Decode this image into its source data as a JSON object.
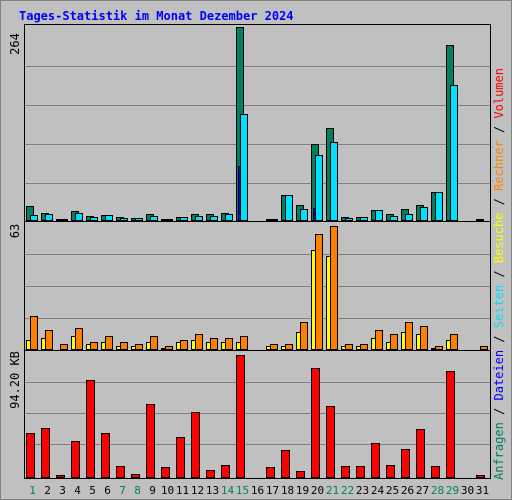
{
  "title": "Tages-Statistik im Monat Dezember 2024",
  "colors": {
    "background": "#c0c0c0",
    "title": "#0000ff",
    "grid": "#808080",
    "anfragen": "#008060",
    "dateien": "#0000ff",
    "seiten": "#00e0ff",
    "besuche": "#ffff00",
    "rechner": "#ff8000",
    "volumen": "#ff0000",
    "weekend": "#00805c",
    "weekday": "#000000"
  },
  "chart_data": [
    {
      "type": "bar",
      "panel": "top",
      "categories": [
        "1",
        "2",
        "3",
        "4",
        "5",
        "6",
        "7",
        "8",
        "9",
        "10",
        "11",
        "12",
        "13",
        "14",
        "15",
        "16",
        "17",
        "18",
        "19",
        "20",
        "21",
        "22",
        "23",
        "24",
        "25",
        "26",
        "27",
        "28",
        "29",
        "30",
        "31"
      ],
      "y_axis_max_label": "264",
      "ylim": [
        0,
        264
      ],
      "series": [
        {
          "name": "Anfragen",
          "values": [
            21,
            11,
            3,
            13,
            7,
            8,
            5,
            4,
            9,
            3,
            6,
            10,
            9,
            11,
            264,
            0,
            3,
            36,
            22,
            105,
            126,
            5,
            6,
            15,
            10,
            16,
            22,
            39,
            240,
            0,
            1
          ]
        },
        {
          "name": "Dateien",
          "values": [
            0,
            0,
            0,
            0,
            0,
            0,
            0,
            0,
            0,
            0,
            0,
            0,
            0,
            0,
            75,
            0,
            0,
            0,
            0,
            18,
            0,
            0,
            0,
            0,
            0,
            0,
            0,
            0,
            0,
            0,
            0
          ]
        },
        {
          "name": "Seiten",
          "values": [
            8,
            9,
            2,
            11,
            5,
            8,
            4,
            4,
            7,
            3,
            5,
            7,
            7,
            9,
            145,
            0,
            3,
            35,
            16,
            90,
            108,
            4,
            6,
            15,
            7,
            9,
            19,
            39,
            185,
            0,
            0
          ]
        }
      ]
    },
    {
      "type": "bar",
      "panel": "middle",
      "categories": [
        "1",
        "2",
        "3",
        "4",
        "5",
        "6",
        "7",
        "8",
        "9",
        "10",
        "11",
        "12",
        "13",
        "14",
        "15",
        "16",
        "17",
        "18",
        "19",
        "20",
        "21",
        "22",
        "23",
        "24",
        "25",
        "26",
        "27",
        "28",
        "29",
        "30",
        "31"
      ],
      "y_axis_max_label": "63",
      "ylim": [
        0,
        63
      ],
      "series": [
        {
          "name": "Besuche",
          "values": [
            5,
            6,
            0,
            7,
            3,
            4,
            2,
            2,
            4,
            1,
            4,
            5,
            4,
            4,
            4,
            0,
            2,
            2,
            9,
            50,
            47,
            2,
            2,
            6,
            4,
            9,
            8,
            1,
            5,
            0,
            0
          ]
        },
        {
          "name": "Rechner",
          "values": [
            17,
            10,
            3,
            11,
            4,
            7,
            4,
            3,
            7,
            2,
            5,
            8,
            6,
            6,
            7,
            0,
            3,
            3,
            14,
            58,
            62,
            3,
            3,
            10,
            8,
            14,
            12,
            2,
            8,
            0,
            2
          ]
        }
      ]
    },
    {
      "type": "bar",
      "panel": "bottom",
      "categories": [
        "1",
        "2",
        "3",
        "4",
        "5",
        "6",
        "7",
        "8",
        "9",
        "10",
        "11",
        "12",
        "13",
        "14",
        "15",
        "16",
        "17",
        "18",
        "19",
        "20",
        "21",
        "22",
        "23",
        "24",
        "25",
        "26",
        "27",
        "28",
        "29",
        "30",
        "31"
      ],
      "y_axis_max_label": "94.20 KB",
      "ylim": [
        0,
        94.2
      ],
      "series": [
        {
          "name": "Volumen",
          "values": [
            34,
            38,
            2,
            28,
            74,
            34,
            9,
            3,
            56,
            8,
            31,
            50,
            6,
            10,
            93,
            0,
            8,
            21,
            5,
            83,
            54,
            9,
            9,
            26,
            10,
            22,
            37,
            9,
            81,
            0,
            2
          ]
        }
      ]
    }
  ],
  "legend": [
    "Anfragen",
    "/",
    "Dateien",
    "/",
    "Seiten",
    "/",
    "Besuche",
    "/",
    "Rechner",
    "/",
    "Volumen"
  ],
  "weekend_days": [
    1,
    7,
    8,
    14,
    15,
    21,
    22,
    28,
    29
  ]
}
